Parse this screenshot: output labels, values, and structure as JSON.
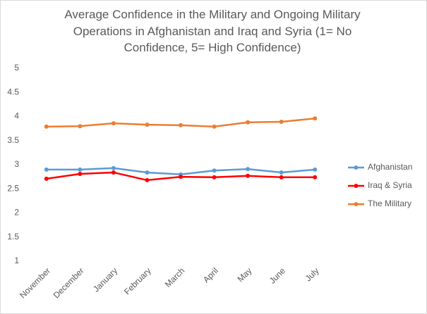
{
  "chart_data": {
    "type": "line",
    "title": "Average Confidence in the Military and Ongoing Military Operations in Afghanistan and Iraq and Syria (1= No Confidence, 5= High Confidence)",
    "categories": [
      "November",
      "December",
      "January",
      "February",
      "March",
      "April",
      "May",
      "June",
      "July"
    ],
    "series": [
      {
        "name": "Afghanistan",
        "color": "#5b9bd5",
        "values": [
          2.9,
          2.9,
          2.93,
          2.84,
          2.8,
          2.88,
          2.91,
          2.84,
          2.9
        ]
      },
      {
        "name": "Iraq & Syria",
        "color": "#ff0000",
        "values": [
          2.71,
          2.81,
          2.84,
          2.68,
          2.75,
          2.74,
          2.77,
          2.74,
          2.74
        ]
      },
      {
        "name": "The Military",
        "color": "#ed7d31",
        "values": [
          3.79,
          3.8,
          3.86,
          3.83,
          3.82,
          3.79,
          3.88,
          3.89,
          3.96
        ]
      }
    ],
    "ylim": [
      1,
      5
    ],
    "yticks": [
      1,
      1.5,
      2,
      2.5,
      3,
      3.5,
      4,
      4.5,
      5
    ],
    "grid": false,
    "legend": "right"
  }
}
